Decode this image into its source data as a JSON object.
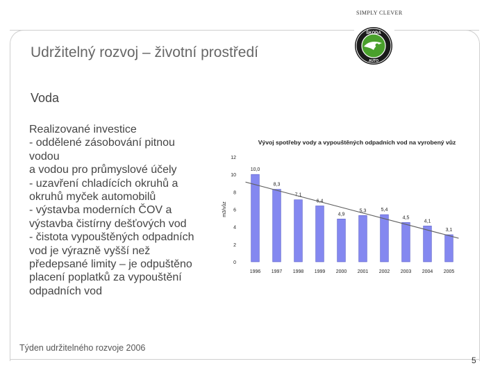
{
  "header": {
    "tagline": "SIMPLY CLEVER",
    "logo_name": "skoda-logo",
    "logo_text": "ŠKODA AUTO"
  },
  "title": "Udržitelný rozvoj – životní prostředí",
  "section": "Voda",
  "body_lines": [
    "Realizované investice",
    "- oddělené zásobování pitnou",
    "vodou",
    "a vodou pro průmyslové účely",
    "- uzavření chladících okruhů a",
    "okruhů myček automobilů",
    "- výstavba moderních ČOV a",
    "výstavba čistírny dešťových vod",
    "- čistota vypouštěných odpadních",
    "vod je výrazně vyšší než",
    "předepsané limity – je odpuštěno",
    "placení poplatků za vypouštění",
    "odpadních vod"
  ],
  "footer": "Týden udržitelného rozvoje 2006",
  "page_number": "5",
  "colors": {
    "bar": "#8488f0",
    "bar_edge": "#5a5ec8",
    "trend": "#606060",
    "frame": "#cfcfcf"
  },
  "chart_data": {
    "type": "bar",
    "title": "Vývoj spotřeby vody a vypouštěných odpadních vod na vyrobený vůz",
    "ylabel": "m3/vůz",
    "xlabel": "",
    "categories": [
      "1996",
      "1997",
      "1998",
      "1999",
      "2000",
      "2001",
      "2002",
      "2003",
      "2004",
      "2005"
    ],
    "values": [
      10.0,
      8.3,
      7.1,
      6.4,
      4.9,
      5.3,
      5.4,
      4.5,
      4.1,
      3.1
    ],
    "data_labels": [
      "10,0",
      "8,3",
      "7,1",
      "6,4",
      "4,9",
      "5,3",
      "5,4",
      "4,5",
      "4,1",
      "3,1"
    ],
    "ylim": [
      0,
      12
    ],
    "yticks": [
      0,
      2,
      4,
      6,
      8,
      10,
      12
    ],
    "trendline": true,
    "grid": false
  }
}
